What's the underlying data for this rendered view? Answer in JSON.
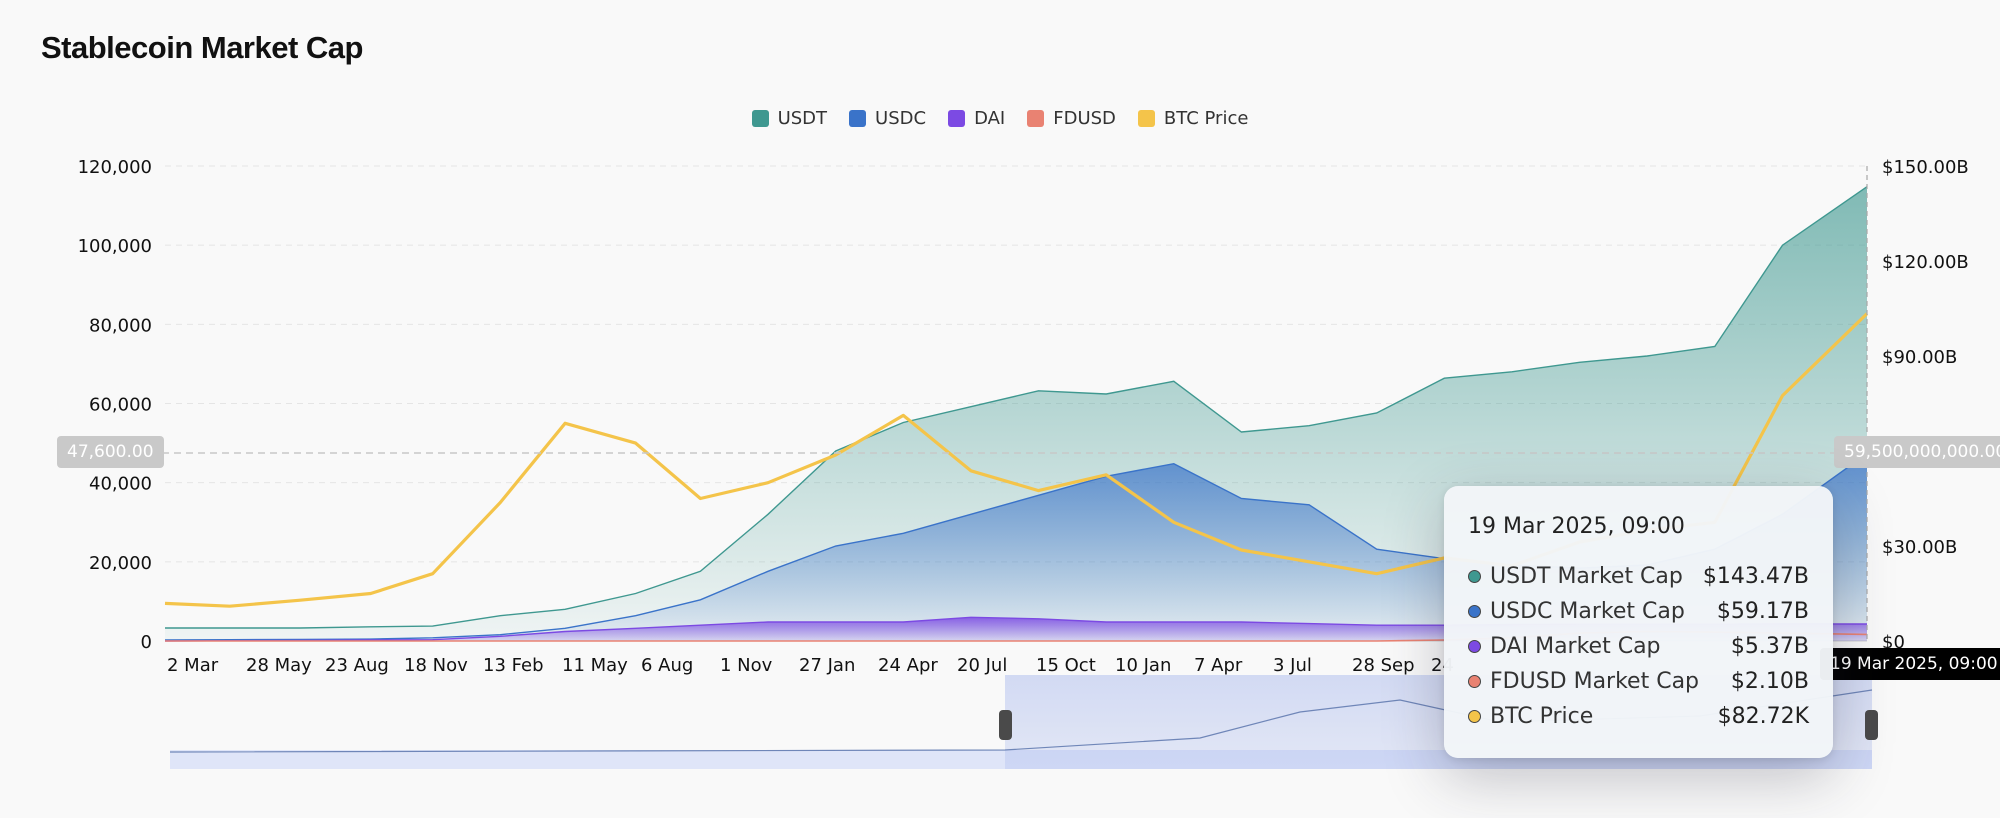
{
  "page": {
    "title": "Stablecoin Market Cap"
  },
  "colors": {
    "usdt": "#3f9890",
    "usdc": "#3a73c9",
    "dai": "#7c4ae3",
    "fdusd": "#e98272",
    "btc": "#f4c44a"
  },
  "legend": [
    {
      "name": "USDT",
      "color": "#3f9890"
    },
    {
      "name": "USDC",
      "color": "#3a73c9"
    },
    {
      "name": "DAI",
      "color": "#7c4ae3"
    },
    {
      "name": "FDUSD",
      "color": "#e98272"
    },
    {
      "name": "BTC Price",
      "color": "#f4c44a"
    }
  ],
  "crosshair": {
    "left_value": "47,600.00",
    "right_value": "59,500,000,000.00",
    "date": "19 Mar 2025, 09:00"
  },
  "tooltip": {
    "title": "19 Mar 2025, 09:00",
    "rows": [
      {
        "label": "USDT Market Cap",
        "value": "$143.47B",
        "color": "#3f9890"
      },
      {
        "label": "USDC Market Cap",
        "value": "$59.17B",
        "color": "#3a73c9"
      },
      {
        "label": "DAI Market Cap",
        "value": "$5.37B",
        "color": "#7c4ae3"
      },
      {
        "label": "FDUSD Market Cap",
        "value": "$2.10B",
        "color": "#e98272"
      },
      {
        "label": "BTC Price",
        "value": "$82.72K",
        "color": "#f4c44a"
      }
    ]
  },
  "chart_data": {
    "type": "area",
    "title": "Stablecoin Market Cap",
    "grid": true,
    "legend_position": "top-center",
    "x_tick_labels": [
      "2 Mar",
      "28 May",
      "23 Aug",
      "18 Nov",
      "13 Feb",
      "11 May",
      "6 Aug",
      "1 Nov",
      "27 Jan",
      "24 Apr",
      "20 Jul",
      "15 Oct",
      "10 Jan",
      "7 Apr",
      "3 Jul",
      "28 Sep",
      "24"
    ],
    "y_left": {
      "range": [
        0,
        120000
      ],
      "ticks": [
        0,
        20000,
        40000,
        60000,
        80000,
        100000,
        120000
      ],
      "tick_labels": [
        "0",
        "20,000",
        "40,000",
        "60,000",
        "80,000",
        "100,000",
        "120,000"
      ]
    },
    "y_right": {
      "range": [
        0,
        150
      ],
      "ticks": [
        0,
        30,
        60,
        90,
        120,
        150
      ],
      "tick_labels": [
        "$0",
        "$30.00B",
        "$60.00B",
        "$90.00B",
        "$120.00B",
        "$150.00B"
      ]
    },
    "x": [
      2019.17,
      2019.4,
      2019.65,
      2019.9,
      2020.12,
      2020.36,
      2020.59,
      2020.84,
      2021.07,
      2021.31,
      2021.55,
      2021.79,
      2022.03,
      2022.27,
      2022.51,
      2022.75,
      2022.99,
      2023.23,
      2023.47,
      2023.71,
      2023.95,
      2024.19,
      2024.43,
      2024.67,
      2024.91,
      2025.21
    ],
    "series": [
      {
        "name": "USDT",
        "axis": "right",
        "values": [
          4.1,
          4.1,
          4.1,
          4.5,
          4.7,
          8,
          10,
          15,
          22,
          40,
          60,
          69,
          74,
          79,
          78,
          82,
          66,
          68,
          72,
          83,
          85,
          88,
          90,
          93,
          125,
          143.47
        ]
      },
      {
        "name": "USDC",
        "axis": "right",
        "values": [
          0.3,
          0.4,
          0.5,
          0.6,
          1,
          2,
          4,
          8,
          13,
          22,
          30,
          34,
          40,
          46,
          52,
          56,
          45,
          43,
          29,
          26,
          24,
          23,
          24,
          29,
          40,
          59.17
        ]
      },
      {
        "name": "DAI",
        "axis": "right",
        "values": [
          0,
          0.1,
          0.2,
          0.3,
          0.4,
          1.5,
          3,
          4,
          5,
          6,
          6,
          6,
          7.5,
          7,
          6,
          6,
          6,
          5.5,
          5,
          5,
          5.2,
          5.3,
          5.3,
          5.3,
          5.4,
          5.37
        ]
      },
      {
        "name": "FDUSD",
        "axis": "right",
        "values": [
          0,
          0,
          0,
          0,
          0,
          0,
          0,
          0,
          0,
          0,
          0,
          0,
          0,
          0,
          0,
          0,
          0,
          0,
          0,
          0.3,
          1,
          2.5,
          3,
          2.8,
          2.5,
          2.1
        ]
      },
      {
        "name": "BTC Price",
        "axis": "left",
        "values": [
          9500,
          8800,
          10300,
          12000,
          17000,
          35000,
          55000,
          50000,
          36000,
          40000,
          47000,
          57000,
          43000,
          38000,
          42000,
          30000,
          23000,
          20000,
          17000,
          21000,
          19000,
          25000,
          28000,
          30000,
          62000,
          82720
        ]
      }
    ]
  }
}
